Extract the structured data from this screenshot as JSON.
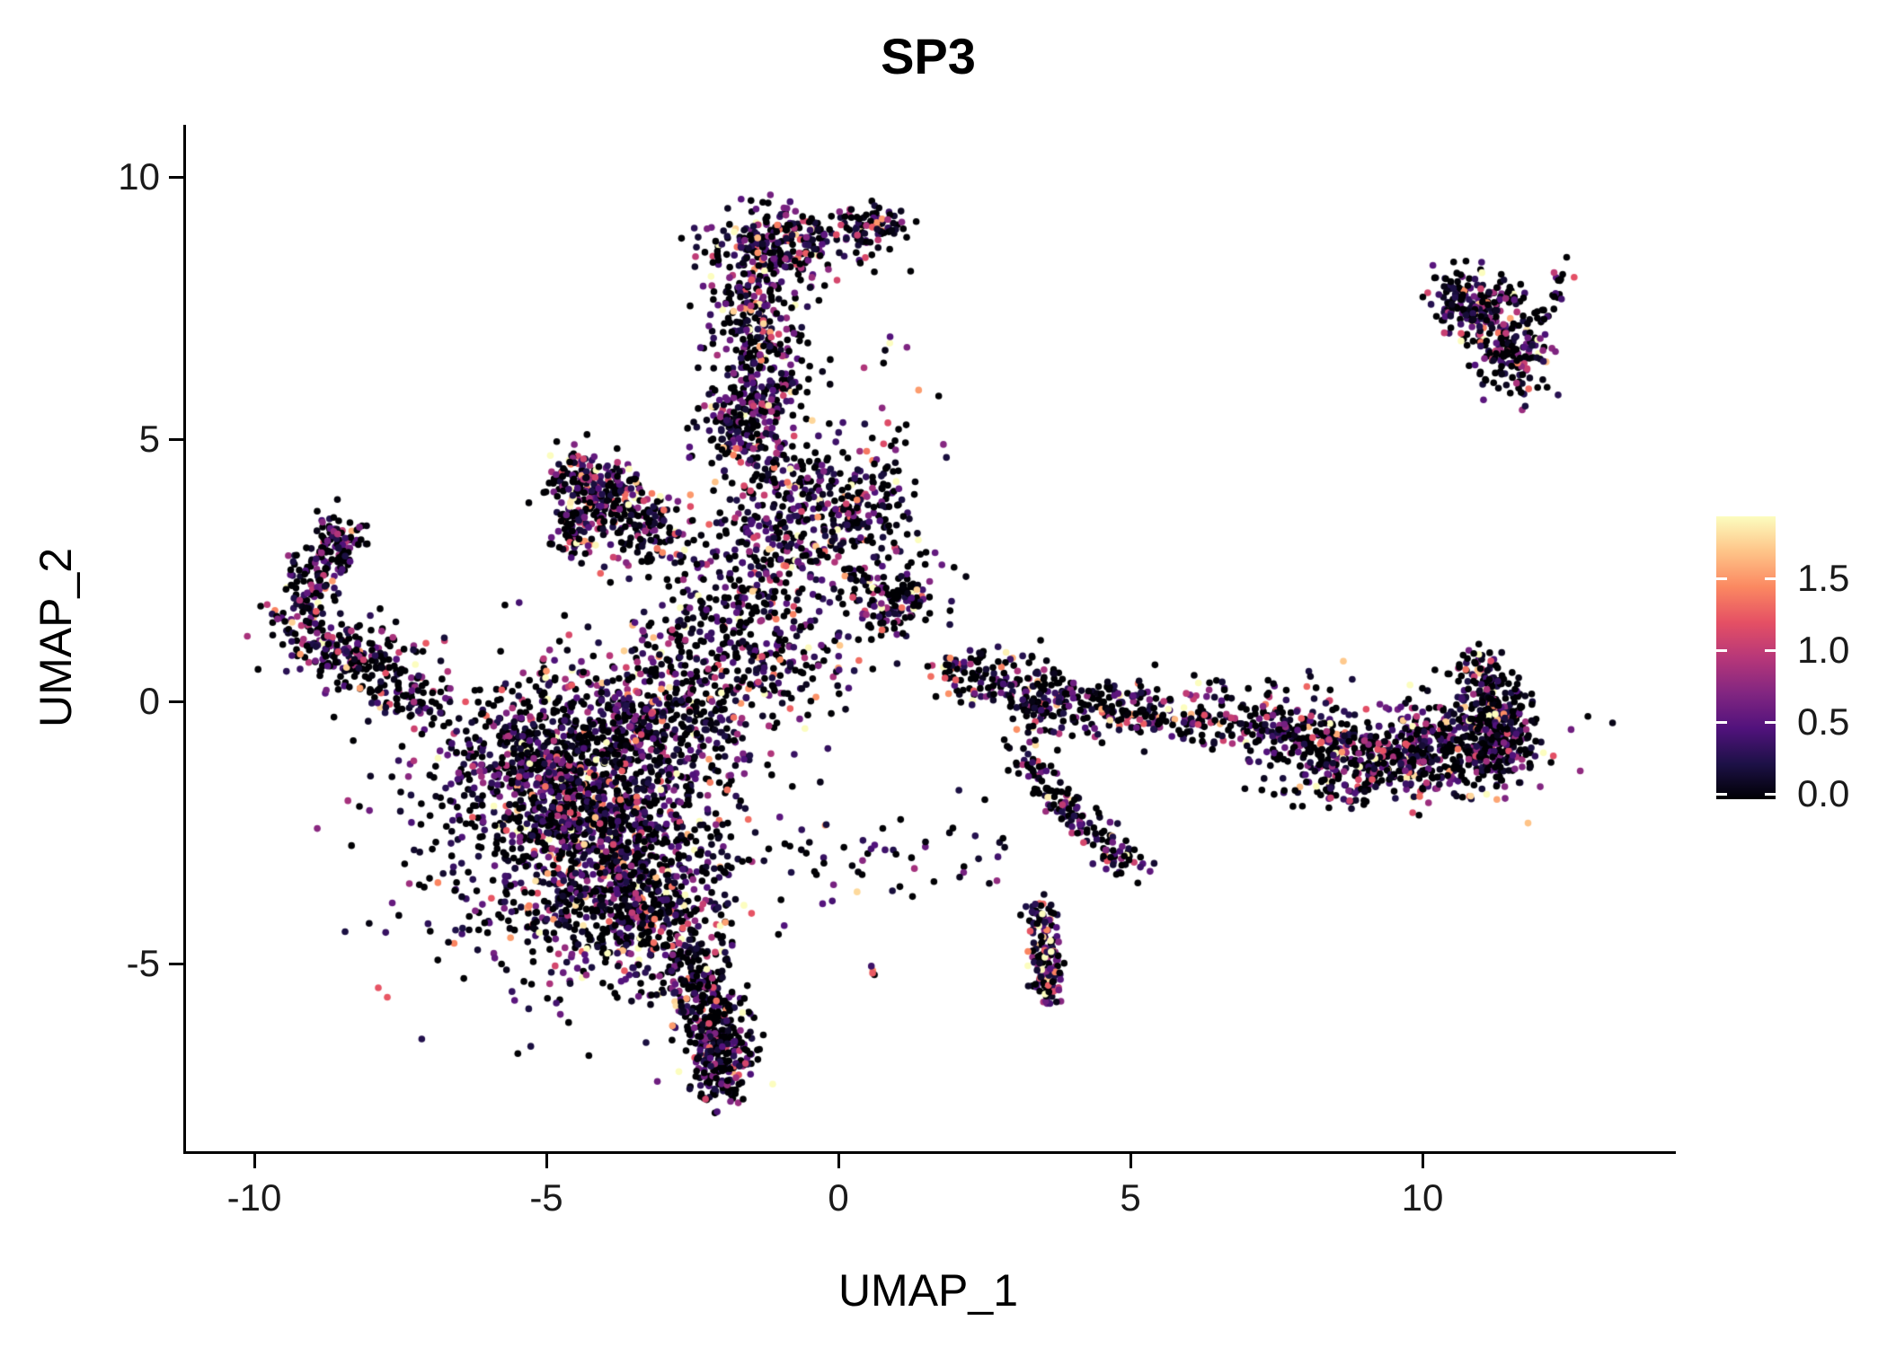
{
  "title": "SP3",
  "axes": {
    "x": {
      "label": "UMAP_1",
      "ticks": [
        -10,
        -5,
        0,
        5,
        10
      ]
    },
    "y": {
      "label": "UMAP_2",
      "ticks": [
        10,
        5,
        0,
        -5
      ]
    }
  },
  "colorbar": {
    "tick_values": [
      1.5,
      1.0,
      0.5,
      0.0
    ],
    "tick_labels": [
      "1.5",
      "1.0",
      "0.5",
      "0.0"
    ],
    "vmin": 0.0,
    "vmax": 1.9
  },
  "chart_data": {
    "type": "scatter",
    "title": "SP3",
    "xlabel": "UMAP_1",
    "ylabel": "UMAP_2",
    "xlim": [
      -11.2,
      14.2
    ],
    "ylim": [
      -9.0,
      11.0
    ],
    "x_ticks": [
      -10,
      -5,
      0,
      5,
      10
    ],
    "y_ticks": [
      -5,
      0,
      5,
      10
    ],
    "grid": false,
    "legend_position": "right",
    "point_radius_px": 3.8,
    "color_scale": {
      "name": "magma",
      "vmin": 0.0,
      "vmax": 1.9,
      "stops": [
        [
          0.0,
          "#000004"
        ],
        [
          0.125,
          "#1d1147"
        ],
        [
          0.25,
          "#51127c"
        ],
        [
          0.375,
          "#822681"
        ],
        [
          0.5,
          "#b73779"
        ],
        [
          0.625,
          "#e55064"
        ],
        [
          0.75,
          "#fb8861"
        ],
        [
          0.875,
          "#fec488"
        ],
        [
          1.0,
          "#fcfdbf"
        ]
      ]
    },
    "point_value_model": {
      "p_zero": 0.4,
      "exp_scale": 0.55,
      "seed": 42
    },
    "clusters": [
      {
        "type": "gauss",
        "cx": -4.2,
        "cy": -2.2,
        "sx": 1.05,
        "sy": 1.25,
        "n": 1300
      },
      {
        "type": "gauss",
        "cx": -3.4,
        "cy": -3.9,
        "sx": 0.75,
        "sy": 0.75,
        "n": 380
      },
      {
        "type": "gauss",
        "cx": -5.3,
        "cy": -1.1,
        "sx": 0.75,
        "sy": 0.65,
        "n": 320
      },
      {
        "type": "gauss",
        "cx": -3.0,
        "cy": -0.4,
        "sx": 0.9,
        "sy": 0.6,
        "n": 240
      },
      {
        "type": "gauss",
        "cx": -4.6,
        "cy": -2.4,
        "sx": 1.8,
        "sy": 1.7,
        "n": 280
      },
      {
        "type": "seg",
        "x1": -2.7,
        "y1": -4.6,
        "x2": -1.9,
        "y2": -7.0,
        "j": 0.33,
        "n": 330,
        "p0": 0.5
      },
      {
        "type": "gauss",
        "cx": -2.05,
        "cy": -6.9,
        "sx": 0.28,
        "sy": 0.45,
        "n": 140,
        "p0": 0.5
      },
      {
        "type": "gauss",
        "cx": -2.5,
        "cy": 0.5,
        "sx": 0.95,
        "sy": 0.7,
        "n": 190
      },
      {
        "type": "seg",
        "x1": -7.0,
        "y1": -0.1,
        "x2": -9.35,
        "y2": 1.45,
        "j": 0.3,
        "n": 230
      },
      {
        "type": "seg",
        "x1": -9.3,
        "y1": 1.5,
        "x2": -8.55,
        "y2": 3.1,
        "j": 0.27,
        "n": 150
      },
      {
        "type": "gauss",
        "cx": -8.6,
        "cy": 3.1,
        "sx": 0.22,
        "sy": 0.22,
        "n": 50
      },
      {
        "type": "gauss",
        "cx": -7.9,
        "cy": 0.8,
        "sx": 0.6,
        "sy": 0.6,
        "n": 70
      },
      {
        "type": "seg",
        "x1": -4.55,
        "y1": 4.55,
        "x2": -4.45,
        "y2": 2.95,
        "j": 0.22,
        "n": 140,
        "scale": 0.65
      },
      {
        "type": "seg",
        "x1": -4.5,
        "y1": 4.4,
        "x2": -2.85,
        "y2": 2.95,
        "j": 0.28,
        "n": 190,
        "scale": 0.65
      },
      {
        "type": "gauss",
        "cx": -3.9,
        "cy": 3.7,
        "sx": 0.45,
        "sy": 0.45,
        "n": 110
      },
      {
        "type": "gauss",
        "cx": -0.95,
        "cy": 8.75,
        "sx": 0.6,
        "sy": 0.33,
        "n": 250,
        "p0": 0.32
      },
      {
        "type": "gauss",
        "cx": 0.6,
        "cy": 9.05,
        "sx": 0.28,
        "sy": 0.22,
        "n": 80,
        "p0": 0.32
      },
      {
        "type": "seg",
        "x1": -1.5,
        "y1": 8.4,
        "x2": -1.25,
        "y2": 5.4,
        "j": 0.42,
        "n": 360
      },
      {
        "type": "gauss",
        "cx": -1.75,
        "cy": 5.35,
        "sx": 0.38,
        "sy": 0.45,
        "n": 140
      },
      {
        "type": "seg",
        "x1": -1.3,
        "y1": 5.0,
        "x2": -0.95,
        "y2": 1.6,
        "j": 0.5,
        "n": 300
      },
      {
        "type": "gauss",
        "cx": 0.2,
        "cy": 3.6,
        "sx": 0.55,
        "sy": 0.65,
        "n": 260
      },
      {
        "type": "gauss",
        "cx": 0.95,
        "cy": 1.95,
        "sx": 0.42,
        "sy": 0.38,
        "n": 150
      },
      {
        "type": "gauss",
        "cx": -2.3,
        "cy": 2.1,
        "sx": 0.75,
        "sy": 0.75,
        "n": 110
      },
      {
        "type": "gauss",
        "cx": -1.3,
        "cy": 0.9,
        "sx": 0.85,
        "sy": 0.5,
        "n": 130
      },
      {
        "type": "gauss",
        "cx": 0.7,
        "cy": 5.9,
        "sx": 0.5,
        "sy": 0.9,
        "n": 22
      },
      {
        "type": "seg",
        "x1": 1.85,
        "y1": 0.65,
        "x2": 4.6,
        "y2": -0.15,
        "j": 0.28,
        "n": 240
      },
      {
        "type": "seg",
        "x1": 4.6,
        "y1": -0.15,
        "x2": 7.5,
        "y2": -0.55,
        "j": 0.24,
        "n": 200
      },
      {
        "type": "seg",
        "x1": 7.5,
        "y1": -0.55,
        "x2": 10.0,
        "y2": -1.1,
        "j": 0.28,
        "n": 260
      },
      {
        "type": "gauss",
        "cx": 10.6,
        "cy": -0.85,
        "sx": 0.75,
        "sy": 0.5,
        "n": 420
      },
      {
        "type": "seg",
        "x1": 10.85,
        "y1": 0.9,
        "x2": 11.4,
        "y2": -0.8,
        "j": 0.22,
        "n": 160
      },
      {
        "type": "gauss",
        "cx": 11.35,
        "cy": -0.35,
        "sx": 0.28,
        "sy": 0.5,
        "n": 110
      },
      {
        "type": "gauss",
        "cx": 6.5,
        "cy": 0.1,
        "sx": 1.4,
        "sy": 0.35,
        "n": 60
      },
      {
        "type": "gauss",
        "cx": 8.6,
        "cy": -1.35,
        "sx": 0.65,
        "sy": 0.35,
        "n": 160
      },
      {
        "type": "seg",
        "x1": 3.2,
        "y1": -1.2,
        "x2": 5.15,
        "y2": -3.3,
        "j": 0.18,
        "n": 150
      },
      {
        "type": "seg",
        "x1": 3.45,
        "y1": -3.9,
        "x2": 3.6,
        "y2": -5.65,
        "j": 0.14,
        "n": 160,
        "p0": 0.22,
        "scale": 0.65
      },
      {
        "type": "gauss",
        "cx": 3.35,
        "cy": -0.35,
        "sx": 0.3,
        "sy": 0.5,
        "n": 40
      },
      {
        "type": "gauss",
        "cx": 11.0,
        "cy": 7.6,
        "sx": 0.35,
        "sy": 0.3,
        "n": 110,
        "scale": 0.6
      },
      {
        "type": "seg",
        "x1": 10.45,
        "y1": 7.9,
        "x2": 11.75,
        "y2": 6.35,
        "j": 0.28,
        "n": 150,
        "scale": 0.6
      },
      {
        "type": "seg",
        "x1": 11.85,
        "y1": 6.95,
        "x2": 12.5,
        "y2": 8.3,
        "j": 0.13,
        "n": 35,
        "scale": 0.6
      },
      {
        "type": "gauss",
        "cx": 11.6,
        "cy": 6.5,
        "sx": 0.28,
        "sy": 0.38,
        "n": 70,
        "scale": 0.6
      },
      {
        "type": "gauss",
        "cx": 0.6,
        "cy": -3.0,
        "sx": 0.85,
        "sy": 0.38,
        "n": 36
      },
      {
        "type": "gauss",
        "cx": 0.66,
        "cy": -5.15,
        "sx": 0.07,
        "sy": 0.1,
        "n": 4
      },
      {
        "type": "gauss",
        "cx": 2.3,
        "cy": -2.5,
        "sx": 0.5,
        "sy": 0.5,
        "n": 12
      }
    ]
  }
}
